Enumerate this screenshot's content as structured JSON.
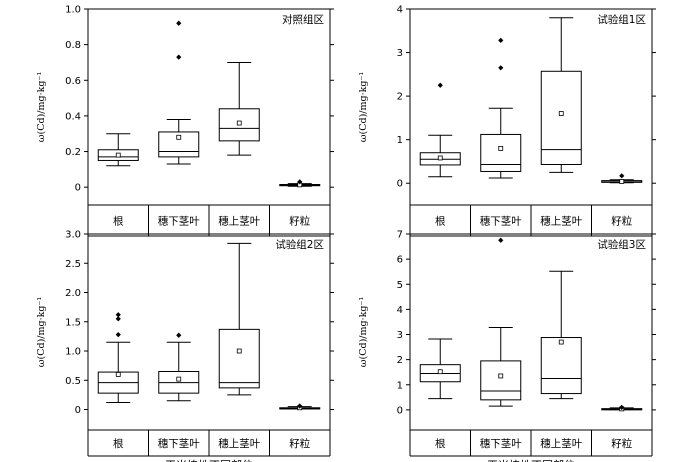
{
  "chart_data": [
    {
      "type": "box",
      "title": "对照组区",
      "ylabel": "ω(Cd)/mg·kg⁻¹",
      "xlabel": "",
      "ylim": [
        -0.1,
        1.0
      ],
      "yticks": [
        0,
        0.2,
        0.4,
        0.6,
        0.8,
        1.0
      ],
      "ytick_labels": [
        "0",
        "0.2",
        "0.4",
        "0.6",
        "0.8",
        "1.0"
      ],
      "categories": [
        "根",
        "穗下茎叶",
        "穗上茎叶",
        "籽粒"
      ],
      "boxes": [
        {
          "min": 0.12,
          "q1": 0.15,
          "median": 0.17,
          "q3": 0.21,
          "max": 0.3,
          "mean": 0.18,
          "outliers": []
        },
        {
          "min": 0.13,
          "q1": 0.17,
          "median": 0.2,
          "q3": 0.31,
          "max": 0.38,
          "mean": 0.28,
          "outliers": [
            0.73,
            0.92
          ]
        },
        {
          "min": 0.18,
          "q1": 0.26,
          "median": 0.33,
          "q3": 0.44,
          "max": 0.7,
          "mean": 0.36,
          "outliers": []
        },
        {
          "min": 0.005,
          "q1": 0.01,
          "median": 0.012,
          "q3": 0.015,
          "max": 0.02,
          "mean": 0.013,
          "outliers": [
            0.03
          ]
        }
      ]
    },
    {
      "type": "box",
      "title": "试验组1区",
      "ylabel": "ω(Cd)/mg·kg⁻¹",
      "xlabel": "",
      "ylim": [
        -0.5,
        4.0
      ],
      "yticks": [
        0,
        1,
        2,
        3,
        4
      ],
      "ytick_labels": [
        "0",
        "1",
        "2",
        "3",
        "4"
      ],
      "categories": [
        "根",
        "穗下茎叶",
        "穗上茎叶",
        "籽粒"
      ],
      "boxes": [
        {
          "min": 0.15,
          "q1": 0.42,
          "median": 0.55,
          "q3": 0.7,
          "max": 1.1,
          "mean": 0.58,
          "outliers": [
            2.25
          ]
        },
        {
          "min": 0.12,
          "q1": 0.27,
          "median": 0.43,
          "q3": 1.12,
          "max": 1.72,
          "mean": 0.8,
          "outliers": [
            2.65,
            3.28
          ]
        },
        {
          "min": 0.25,
          "q1": 0.43,
          "median": 0.77,
          "q3": 2.57,
          "max": 3.8,
          "mean": 1.6,
          "outliers": []
        },
        {
          "min": 0.01,
          "q1": 0.02,
          "median": 0.03,
          "q3": 0.06,
          "max": 0.08,
          "mean": 0.04,
          "outliers": [
            0.17
          ]
        }
      ]
    },
    {
      "type": "box",
      "title": "试验组2区",
      "ylabel": "ω(Cd)/mg·kg⁻¹",
      "xlabel": "玉米植株不同部位",
      "ylim": [
        -0.35,
        3.0
      ],
      "yticks": [
        0,
        0.5,
        1.0,
        1.5,
        2.0,
        2.5,
        3.0
      ],
      "ytick_labels": [
        "0",
        "0.5",
        "1.0",
        "1.5",
        "2.0",
        "2.5",
        "3.0"
      ],
      "categories": [
        "根",
        "穗下茎叶",
        "穗上茎叶",
        "籽粒"
      ],
      "boxes": [
        {
          "min": 0.12,
          "q1": 0.28,
          "median": 0.46,
          "q3": 0.64,
          "max": 1.15,
          "mean": 0.6,
          "outliers": [
            1.28,
            1.55,
            1.62
          ]
        },
        {
          "min": 0.15,
          "q1": 0.28,
          "median": 0.46,
          "q3": 0.65,
          "max": 1.15,
          "mean": 0.52,
          "outliers": [
            1.27
          ]
        },
        {
          "min": 0.25,
          "q1": 0.37,
          "median": 0.46,
          "q3": 1.37,
          "max": 2.84,
          "mean": 1.0,
          "outliers": []
        },
        {
          "min": 0.01,
          "q1": 0.015,
          "median": 0.02,
          "q3": 0.03,
          "max": 0.05,
          "mean": 0.03,
          "outliers": [
            0.06
          ]
        }
      ]
    },
    {
      "type": "box",
      "title": "试验组3区",
      "ylabel": "ω(Cd)/mg·kg⁻¹",
      "xlabel": "玉米植株不同部位",
      "ylim": [
        -0.8,
        7.0
      ],
      "yticks": [
        0,
        1,
        2,
        3,
        4,
        5,
        6,
        7
      ],
      "ytick_labels": [
        "0",
        "1",
        "2",
        "3",
        "4",
        "5",
        "6",
        "7"
      ],
      "categories": [
        "根",
        "穗下茎叶",
        "穗上茎叶",
        "籽粒"
      ],
      "boxes": [
        {
          "min": 0.45,
          "q1": 1.12,
          "median": 1.45,
          "q3": 1.8,
          "max": 2.82,
          "mean": 1.52,
          "outliers": []
        },
        {
          "min": 0.15,
          "q1": 0.4,
          "median": 0.75,
          "q3": 1.95,
          "max": 3.28,
          "mean": 1.35,
          "outliers": [
            6.75
          ]
        },
        {
          "min": 0.45,
          "q1": 0.65,
          "median": 1.25,
          "q3": 2.88,
          "max": 5.52,
          "mean": 2.7,
          "outliers": []
        },
        {
          "min": 0.01,
          "q1": 0.02,
          "median": 0.03,
          "q3": 0.05,
          "max": 0.08,
          "mean": 0.04,
          "outliers": [
            0.1
          ]
        }
      ]
    }
  ]
}
